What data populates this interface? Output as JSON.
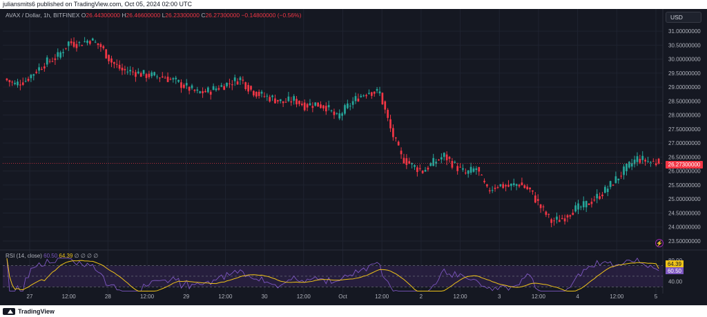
{
  "header": {
    "published": "juliansmits6 published on TradingView.com, Oct 05, 2024 02:00 UTC"
  },
  "legend": {
    "symbol": "AVAX / Dollar, 1h, BITFINEX",
    "open_label": "O",
    "open": "26.44300000",
    "high_label": "H",
    "high": "26.46600000",
    "low_label": "L",
    "low": "26.23300000",
    "close_label": "C",
    "close": "26.27300000",
    "change": "−0.14800000 (−0.56%)",
    "currency": "USD",
    "last_price": "26.27300000"
  },
  "rsi": {
    "title": "RSI (14, close)",
    "value": "60.50",
    "ma": "64.39",
    "na_markers": "∅ ∅ ∅ ∅"
  },
  "footer": {
    "brand": "TradingView"
  },
  "colors": {
    "background": "#151822",
    "up": "#26a69a",
    "down": "#f23645",
    "rsi_line": "#7e57c2",
    "rsi_ma": "#f0c419",
    "rsi_band": "#2a2145",
    "grid": "#1f2330"
  },
  "chart_data": {
    "type": "candlestick",
    "x_tick_labels": [
      "27",
      "12:00",
      "28",
      "12:00",
      "29",
      "12:00",
      "30",
      "12:00",
      "Oct",
      "12:00",
      "2",
      "12:00",
      "3",
      "12:00",
      "4",
      "12:00",
      "5"
    ],
    "y_tick_labels": [
      "31.00000000",
      "30.50000000",
      "30.00000000",
      "29.50000000",
      "29.00000000",
      "28.50000000",
      "28.00000000",
      "27.50000000",
      "27.00000000",
      "26.50000000",
      "26.00000000",
      "25.50000000",
      "25.00000000",
      "24.50000000",
      "24.00000000",
      "23.50000000"
    ],
    "ylim": [
      23.4,
      31.3
    ],
    "close_path": [
      29.3,
      29.1,
      29.25,
      29.6,
      29.9,
      30.1,
      30.6,
      30.55,
      30.7,
      30.45,
      29.9,
      29.6,
      29.55,
      29.45,
      29.4,
      29.35,
      29.2,
      29.0,
      28.8,
      28.85,
      29.0,
      29.15,
      29.3,
      28.9,
      28.7,
      28.6,
      28.45,
      28.55,
      28.35,
      28.4,
      28.3,
      27.9,
      28.3,
      28.65,
      28.85,
      28.8,
      27.5,
      26.5,
      26.2,
      26.0,
      26.3,
      26.55,
      26.2,
      25.9,
      26.1,
      25.3,
      25.5,
      25.45,
      25.55,
      25.3,
      24.7,
      24.2,
      24.3,
      24.6,
      24.75,
      25.0,
      25.3,
      25.7,
      26.1,
      26.45,
      26.35,
      26.27
    ],
    "rsi_range": [
      0,
      100
    ],
    "rsi_levels": [
      70,
      50,
      30
    ],
    "rsi_y_tick_labels": [
      "80.00",
      "40.00"
    ],
    "rsi_last": 60.5,
    "rsi_ma_last": 64.39
  }
}
